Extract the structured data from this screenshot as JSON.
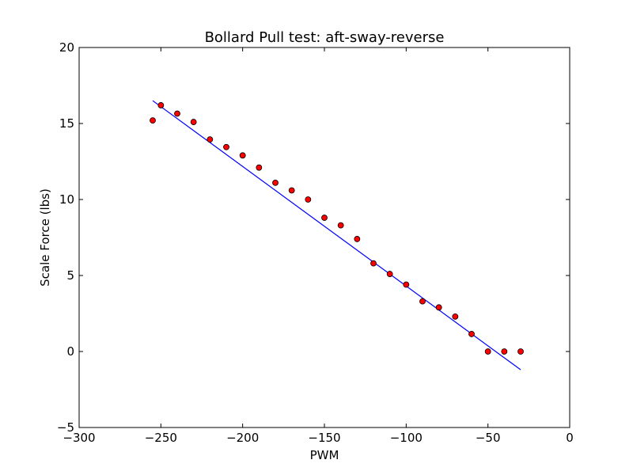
{
  "chart_data": {
    "type": "scatter",
    "title": "Bollard Pull test: aft-sway-reverse",
    "xlabel": "PWM",
    "ylabel": "Scale Force (lbs)",
    "xlim": [
      -300,
      0
    ],
    "ylim": [
      -5,
      20
    ],
    "x_ticks": [
      -300,
      -250,
      -200,
      -150,
      -100,
      -50,
      0
    ],
    "x_tick_labels": [
      "−300",
      "−250",
      "−200",
      "−150",
      "−100",
      "−50",
      "0"
    ],
    "y_ticks": [
      -5,
      0,
      5,
      10,
      15,
      20
    ],
    "y_tick_labels": [
      "−5",
      "0",
      "5",
      "10",
      "15",
      "20"
    ],
    "grid": false,
    "series": [
      {
        "type": "scatter",
        "color": "#ff0000",
        "edge_color": "#000000",
        "x": [
          -255,
          -250,
          -240,
          -230,
          -220,
          -210,
          -200,
          -190,
          -180,
          -170,
          -160,
          -150,
          -140,
          -130,
          -120,
          -110,
          -100,
          -90,
          -80,
          -70,
          -60,
          -50,
          -40,
          -30
        ],
        "y": [
          15.2,
          16.2,
          15.65,
          15.1,
          13.95,
          13.45,
          12.9,
          12.1,
          11.1,
          10.6,
          10.0,
          8.8,
          8.3,
          7.4,
          5.8,
          5.1,
          4.4,
          3.3,
          2.9,
          2.3,
          1.15,
          0.0,
          0.0,
          0.0
        ]
      },
      {
        "type": "line",
        "color": "#0000ff",
        "x": [
          -255,
          -30
        ],
        "y": [
          16.5,
          -1.2
        ]
      }
    ]
  }
}
